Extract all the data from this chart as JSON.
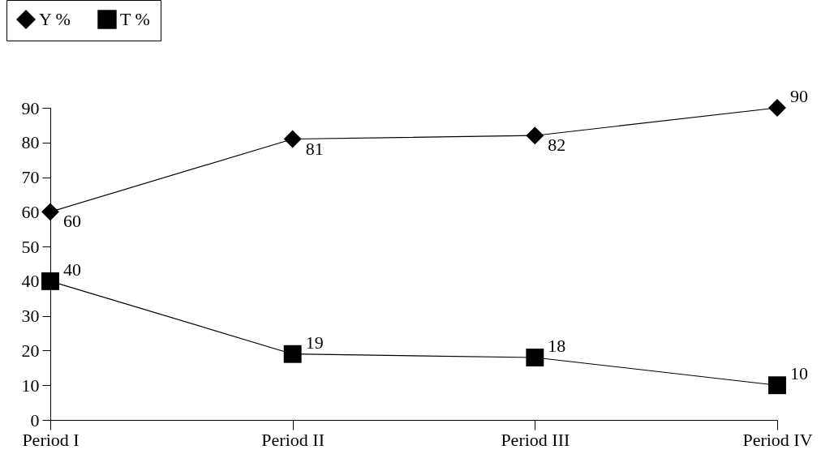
{
  "chart_data": {
    "type": "line",
    "categories": [
      "Period I",
      "Period II",
      "Period III",
      "Period IV"
    ],
    "series": [
      {
        "name": "Y %",
        "color": "#000000",
        "marker": "diamond",
        "values": [
          60,
          81,
          82,
          90
        ]
      },
      {
        "name": "T %",
        "color": "#000000",
        "marker": "square",
        "values": [
          40,
          19,
          18,
          10
        ]
      }
    ],
    "ylim": [
      0,
      90
    ],
    "yticks": [
      0,
      10,
      20,
      30,
      40,
      50,
      60,
      70,
      80,
      90
    ],
    "grid": false,
    "legend": "top left",
    "data_labels": true,
    "line_style": "solid"
  }
}
